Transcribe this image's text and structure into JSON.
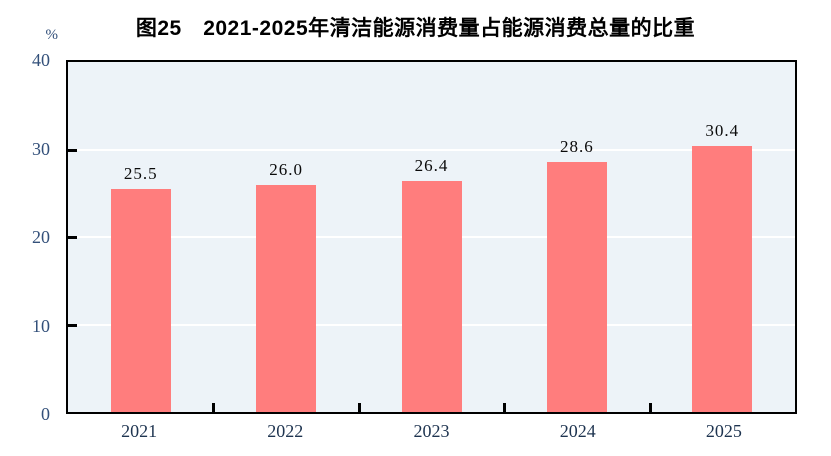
{
  "title": "图25　2021-2025年清洁能源消费量占能源消费总量的比重",
  "y_axis_unit": "%",
  "chart_data": {
    "type": "bar",
    "title": "图25　2021-2025年清洁能源消费量占能源消费总量的比重",
    "categories": [
      "2021",
      "2022",
      "2023",
      "2024",
      "2025"
    ],
    "values": [
      25.5,
      26.0,
      26.4,
      28.6,
      30.4
    ],
    "value_labels": [
      "25.5",
      "26.0",
      "26.4",
      "28.6",
      "30.4"
    ],
    "xlabel": "",
    "ylabel": "%",
    "ylim": [
      0,
      40
    ],
    "yticks": [
      0,
      10,
      20,
      30,
      40
    ],
    "gridline_values": [
      10,
      20,
      30
    ],
    "grid": true,
    "legend": "none"
  },
  "colors": {
    "bar": "#ff7d7d",
    "plot_background": "#edf3f8",
    "gridline": "#ffffff",
    "axis_frame": "#000000",
    "y_tick_label": "#33507a",
    "x_tick_label": "#1e3450",
    "value_label": "#0a0a0a",
    "title": "#000000",
    "page_background": "#ffffff"
  }
}
